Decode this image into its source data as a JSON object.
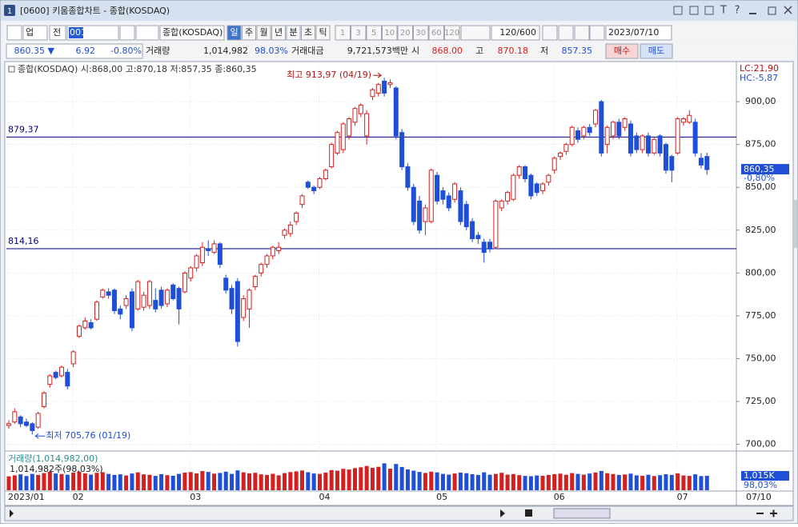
{
  "window": {
    "icon": "1",
    "title": "[0600] 키움종합차트 - 종합(KOSDAQ)",
    "tools": [
      "T",
      "?"
    ]
  },
  "toolbar": {
    "market": "업",
    "scope": "전",
    "code": "001",
    "name": "종합(KOSDAQ)",
    "periods": [
      "일",
      "주",
      "월",
      "년",
      "분",
      "초",
      "틱"
    ],
    "intervals": [
      "1",
      "3",
      "5",
      "10",
      "20",
      "30",
      "60",
      "120"
    ],
    "count": "120/600",
    "date": "2023/07/10"
  },
  "quote": {
    "price": "860.35 ▼",
    "change": "6.92",
    "rate": "-0.80%",
    "volume_label": "거래량",
    "volume": "1,014,982",
    "volume_rate": "98.03%",
    "amount_label": "거래대금",
    "amount": "9,721,573백만",
    "open_label": "시",
    "open": "868.00",
    "high_label": "고",
    "high": "870.18",
    "low_label": "저",
    "low": "857.35",
    "buy": "매수",
    "sell": "매도"
  },
  "chart_data": {
    "type": "candlestick",
    "legend": "종합(KOSDAQ) 시:868,00 고:870,18 저:857,35 종:860,35",
    "categories": [
      "2023/01",
      null,
      null,
      null,
      null,
      null,
      null,
      null,
      null,
      null,
      null,
      "02",
      null,
      null,
      null,
      null,
      null,
      null,
      null,
      null,
      null,
      null,
      null,
      null,
      null,
      null,
      null,
      null,
      null,
      null,
      null,
      "03",
      null,
      null,
      null,
      null,
      null,
      null,
      null,
      null,
      null,
      null,
      null,
      null,
      null,
      null,
      null,
      null,
      null,
      null,
      null,
      null,
      null,
      "04",
      null,
      null,
      null,
      null,
      null,
      null,
      null,
      null,
      null,
      null,
      null,
      null,
      null,
      null,
      null,
      null,
      null,
      null,
      null,
      "05",
      null,
      null,
      null,
      null,
      null,
      null,
      null,
      null,
      null,
      null,
      null,
      null,
      null,
      null,
      null,
      null,
      null,
      null,
      null,
      "06",
      null,
      null,
      null,
      null,
      null,
      null,
      null,
      null,
      null,
      null,
      null,
      null,
      null,
      null,
      null,
      null,
      null,
      null,
      null,
      null,
      "07",
      null,
      null,
      null,
      null,
      null
    ],
    "last_date": "07/10",
    "candles": [
      {
        "o": 711,
        "h": 714,
        "l": 709,
        "c": 712
      },
      {
        "o": 713,
        "h": 721,
        "l": 712,
        "c": 719
      },
      {
        "o": 716,
        "h": 717,
        "l": 710,
        "c": 712
      },
      {
        "o": 713,
        "h": 715,
        "l": 710,
        "c": 711
      },
      {
        "o": 712,
        "h": 713,
        "l": 705.76,
        "c": 708
      },
      {
        "o": 710,
        "h": 719,
        "l": 709,
        "c": 718
      },
      {
        "o": 722,
        "h": 731,
        "l": 721,
        "c": 730
      },
      {
        "o": 735,
        "h": 741,
        "l": 733,
        "c": 740
      },
      {
        "o": 742,
        "h": 743,
        "l": 738,
        "c": 739
      },
      {
        "o": 740,
        "h": 746,
        "l": 739,
        "c": 745
      },
      {
        "o": 742,
        "h": 744,
        "l": 732,
        "c": 734
      },
      {
        "o": 747,
        "h": 755,
        "l": 745,
        "c": 754
      },
      {
        "o": 763,
        "h": 770,
        "l": 762,
        "c": 769
      },
      {
        "o": 768,
        "h": 774,
        "l": 767,
        "c": 772
      },
      {
        "o": 771,
        "h": 773,
        "l": 767,
        "c": 768
      },
      {
        "o": 773,
        "h": 784,
        "l": 772,
        "c": 783
      },
      {
        "o": 786,
        "h": 791,
        "l": 785,
        "c": 790
      },
      {
        "o": 789,
        "h": 791,
        "l": 785,
        "c": 787
      },
      {
        "o": 790,
        "h": 791,
        "l": 776,
        "c": 778
      },
      {
        "o": 779,
        "h": 781,
        "l": 773,
        "c": 776
      },
      {
        "o": 781,
        "h": 787,
        "l": 779,
        "c": 785
      },
      {
        "o": 789,
        "h": 791,
        "l": 766,
        "c": 768
      },
      {
        "o": 779,
        "h": 796,
        "l": 778,
        "c": 795
      },
      {
        "o": 780,
        "h": 789,
        "l": 778,
        "c": 787
      },
      {
        "o": 781,
        "h": 796,
        "l": 779,
        "c": 795
      },
      {
        "o": 784,
        "h": 791,
        "l": 777,
        "c": 779
      },
      {
        "o": 790,
        "h": 792,
        "l": 779,
        "c": 781
      },
      {
        "o": 782,
        "h": 791,
        "l": 780,
        "c": 790
      },
      {
        "o": 793,
        "h": 794,
        "l": 784,
        "c": 785
      },
      {
        "o": 791,
        "h": 792,
        "l": 770,
        "c": 779
      },
      {
        "o": 789,
        "h": 801,
        "l": 788,
        "c": 800
      },
      {
        "o": 797,
        "h": 804,
        "l": 795,
        "c": 803
      },
      {
        "o": 803,
        "h": 811,
        "l": 801,
        "c": 810
      },
      {
        "o": 806,
        "h": 818,
        "l": 804,
        "c": 815
      },
      {
        "o": 814,
        "h": 819,
        "l": 810,
        "c": 813
      },
      {
        "o": 812,
        "h": 819,
        "l": 811,
        "c": 817
      },
      {
        "o": 817,
        "h": 818,
        "l": 803,
        "c": 805
      },
      {
        "o": 797,
        "h": 799,
        "l": 788,
        "c": 790
      },
      {
        "o": 791,
        "h": 793,
        "l": 776,
        "c": 779
      },
      {
        "o": 795,
        "h": 797,
        "l": 757,
        "c": 760
      },
      {
        "o": 774,
        "h": 787,
        "l": 772,
        "c": 785
      },
      {
        "o": 779,
        "h": 791,
        "l": 768,
        "c": 790
      },
      {
        "o": 792,
        "h": 799,
        "l": 790,
        "c": 798
      },
      {
        "o": 800,
        "h": 806,
        "l": 798,
        "c": 805
      },
      {
        "o": 805,
        "h": 811,
        "l": 803,
        "c": 810
      },
      {
        "o": 810,
        "h": 816,
        "l": 808,
        "c": 815
      },
      {
        "o": 813,
        "h": 818,
        "l": 811,
        "c": 815
      },
      {
        "o": 822,
        "h": 826,
        "l": 820,
        "c": 825
      },
      {
        "o": 823,
        "h": 830,
        "l": 821,
        "c": 828
      },
      {
        "o": 830,
        "h": 836,
        "l": 828,
        "c": 835
      },
      {
        "o": 840,
        "h": 846,
        "l": 838,
        "c": 845
      },
      {
        "o": 853,
        "h": 854,
        "l": 849,
        "c": 850
      },
      {
        "o": 850,
        "h": 851,
        "l": 846,
        "c": 848
      },
      {
        "o": 850,
        "h": 856,
        "l": 849,
        "c": 855
      },
      {
        "o": 855,
        "h": 861,
        "l": 854,
        "c": 860
      },
      {
        "o": 862,
        "h": 876,
        "l": 861,
        "c": 875
      },
      {
        "o": 870,
        "h": 883,
        "l": 869,
        "c": 882
      },
      {
        "o": 872,
        "h": 888,
        "l": 870,
        "c": 887
      },
      {
        "o": 880,
        "h": 891,
        "l": 878,
        "c": 890
      },
      {
        "o": 888,
        "h": 897,
        "l": 886,
        "c": 896
      },
      {
        "o": 893,
        "h": 899,
        "l": 891,
        "c": 898
      },
      {
        "o": 880,
        "h": 895,
        "l": 875,
        "c": 893
      },
      {
        "o": 903,
        "h": 908,
        "l": 901,
        "c": 907
      },
      {
        "o": 905,
        "h": 911,
        "l": 903,
        "c": 910
      },
      {
        "o": 912,
        "h": 913.97,
        "l": 903,
        "c": 905
      },
      {
        "o": 910,
        "h": 913,
        "l": 908,
        "c": 911
      },
      {
        "o": 908,
        "h": 909,
        "l": 878,
        "c": 880
      },
      {
        "o": 882,
        "h": 884,
        "l": 860,
        "c": 862
      },
      {
        "o": 862,
        "h": 864,
        "l": 848,
        "c": 850
      },
      {
        "o": 850,
        "h": 852,
        "l": 828,
        "c": 830
      },
      {
        "o": 842,
        "h": 845,
        "l": 823,
        "c": 825
      },
      {
        "o": 830,
        "h": 840,
        "l": 822,
        "c": 838
      },
      {
        "o": 830,
        "h": 861,
        "l": 829,
        "c": 860
      },
      {
        "o": 857,
        "h": 859,
        "l": 840,
        "c": 842
      },
      {
        "o": 848,
        "h": 850,
        "l": 840,
        "c": 843
      },
      {
        "o": 845,
        "h": 847,
        "l": 836,
        "c": 838
      },
      {
        "o": 843,
        "h": 853,
        "l": 841,
        "c": 852
      },
      {
        "o": 848,
        "h": 850,
        "l": 828,
        "c": 830
      },
      {
        "o": 840,
        "h": 842,
        "l": 825,
        "c": 827
      },
      {
        "o": 830,
        "h": 832,
        "l": 818,
        "c": 820
      },
      {
        "o": 822,
        "h": 824,
        "l": 817,
        "c": 820
      },
      {
        "o": 818,
        "h": 820,
        "l": 806,
        "c": 812
      },
      {
        "o": 818,
        "h": 820,
        "l": 812,
        "c": 814
      },
      {
        "o": 815,
        "h": 843,
        "l": 814,
        "c": 842
      },
      {
        "o": 838,
        "h": 843,
        "l": 836,
        "c": 842
      },
      {
        "o": 842,
        "h": 848,
        "l": 840,
        "c": 847
      },
      {
        "o": 843,
        "h": 858,
        "l": 842,
        "c": 857
      },
      {
        "o": 857,
        "h": 863,
        "l": 855,
        "c": 862
      },
      {
        "o": 862,
        "h": 863,
        "l": 853,
        "c": 855
      },
      {
        "o": 857,
        "h": 858,
        "l": 843,
        "c": 845
      },
      {
        "o": 852,
        "h": 853,
        "l": 845,
        "c": 847
      },
      {
        "o": 848,
        "h": 853,
        "l": 846,
        "c": 852
      },
      {
        "o": 853,
        "h": 858,
        "l": 851,
        "c": 857
      },
      {
        "o": 860,
        "h": 868,
        "l": 858,
        "c": 867
      },
      {
        "o": 868,
        "h": 871,
        "l": 866,
        "c": 870
      },
      {
        "o": 871,
        "h": 876,
        "l": 869,
        "c": 875
      },
      {
        "o": 875,
        "h": 886,
        "l": 874,
        "c": 885
      },
      {
        "o": 883,
        "h": 885,
        "l": 876,
        "c": 878
      },
      {
        "o": 880,
        "h": 886,
        "l": 878,
        "c": 885
      },
      {
        "o": 885,
        "h": 887,
        "l": 880,
        "c": 882
      },
      {
        "o": 887,
        "h": 896,
        "l": 885,
        "c": 895
      },
      {
        "o": 900,
        "h": 901,
        "l": 868,
        "c": 870
      },
      {
        "o": 875,
        "h": 886,
        "l": 870,
        "c": 885
      },
      {
        "o": 880,
        "h": 889,
        "l": 878,
        "c": 888
      },
      {
        "o": 888,
        "h": 890,
        "l": 878,
        "c": 880
      },
      {
        "o": 885,
        "h": 891,
        "l": 883,
        "c": 890
      },
      {
        "o": 887,
        "h": 889,
        "l": 868,
        "c": 870
      },
      {
        "o": 880,
        "h": 882,
        "l": 870,
        "c": 872
      },
      {
        "o": 872,
        "h": 881,
        "l": 870,
        "c": 880
      },
      {
        "o": 880,
        "h": 882,
        "l": 868,
        "c": 870
      },
      {
        "o": 870,
        "h": 879,
        "l": 869,
        "c": 878
      },
      {
        "o": 880,
        "h": 881,
        "l": 868,
        "c": 870
      },
      {
        "o": 875,
        "h": 876,
        "l": 858,
        "c": 860
      },
      {
        "o": 868,
        "h": 869,
        "l": 853,
        "c": 860
      },
      {
        "o": 870,
        "h": 891,
        "l": 869,
        "c": 890
      },
      {
        "o": 888,
        "h": 891,
        "l": 886,
        "c": 890
      },
      {
        "o": 888,
        "h": 895,
        "l": 887,
        "c": 892
      },
      {
        "o": 888,
        "h": 890,
        "l": 868,
        "c": 870
      },
      {
        "o": 867,
        "h": 870,
        "l": 861,
        "c": 863
      },
      {
        "o": 868,
        "h": 870.18,
        "l": 857.35,
        "c": 860.35
      }
    ],
    "up_color": "#d32020",
    "down_color": "#1f4fd6",
    "ylim": [
      697,
      922
    ],
    "yticks": [
      {
        "value": 700,
        "label": "700,00"
      },
      {
        "value": 725,
        "label": "725,00"
      },
      {
        "value": 750,
        "label": "750,00"
      },
      {
        "value": 775,
        "label": "775,00"
      },
      {
        "value": 800,
        "label": "800,00"
      },
      {
        "value": 825,
        "label": "825,00"
      },
      {
        "value": 850,
        "label": "850,00"
      },
      {
        "value": 875,
        "label": "875,00"
      },
      {
        "value": 900,
        "label": "900,00"
      }
    ],
    "grid": true,
    "hlines": [
      {
        "value": 879.37,
        "label": "879,37"
      },
      {
        "value": 814.16,
        "label": "814,16"
      }
    ],
    "hline_color": "#000080",
    "annotations": {
      "high": "최고 913,97 (04/19)",
      "low": "최저 705,76 (01/19)"
    },
    "lc": "LC:21,90",
    "hc": "HC:-5,87",
    "last_label": "860,35",
    "last_rate": "-0,80%",
    "volume": {
      "legend": "거래량(1,014,982,00)",
      "sub": "1,014,982주(98,03%)",
      "ylim": [
        0,
        2540000
      ],
      "last_label": "1,015K",
      "last_rate": "98,03%",
      "values": [
        980000,
        1050000,
        1120000,
        1000000,
        1150000,
        1080000,
        1210000,
        1300000,
        1180000,
        1140000,
        1090000,
        1250000,
        1320000,
        1190000,
        1100000,
        1230000,
        1270000,
        1150000,
        1080000,
        1120000,
        1040000,
        1180000,
        1260000,
        1120000,
        1090000,
        1010000,
        1130000,
        1060000,
        1020000,
        1150000,
        1240000,
        1280000,
        1190000,
        1350000,
        1290000,
        1170000,
        1220000,
        1310000,
        1150000,
        1400000,
        1260000,
        1190000,
        1230000,
        1120000,
        1080000,
        1160000,
        1050000,
        1210000,
        1280000,
        1330000,
        1390000,
        1270000,
        1180000,
        1150000,
        1240000,
        1420000,
        1380000,
        1510000,
        1460000,
        1560000,
        1620000,
        1710000,
        1580000,
        1650000,
        1900000,
        1520000,
        1850000,
        1640000,
        1470000,
        1380000,
        1290000,
        1220000,
        1310000,
        1260000,
        1150000,
        1100000,
        1180000,
        1240000,
        1200000,
        1130000,
        1080000,
        1260000,
        1090000,
        1150000,
        1230000,
        1100000,
        1140000,
        1060000,
        1010000,
        990000,
        1040000,
        1020000,
        1080000,
        1130000,
        1170000,
        1090000,
        1210000,
        1150000,
        1100000,
        1180000,
        1250000,
        1360000,
        1200000,
        1140000,
        1080000,
        1110000,
        1170000,
        1050000,
        1020000,
        1090000,
        1000000,
        1060000,
        1130000,
        1080000,
        1190000,
        1040000,
        1010000,
        1120000,
        1000000,
        1014982
      ]
    }
  }
}
